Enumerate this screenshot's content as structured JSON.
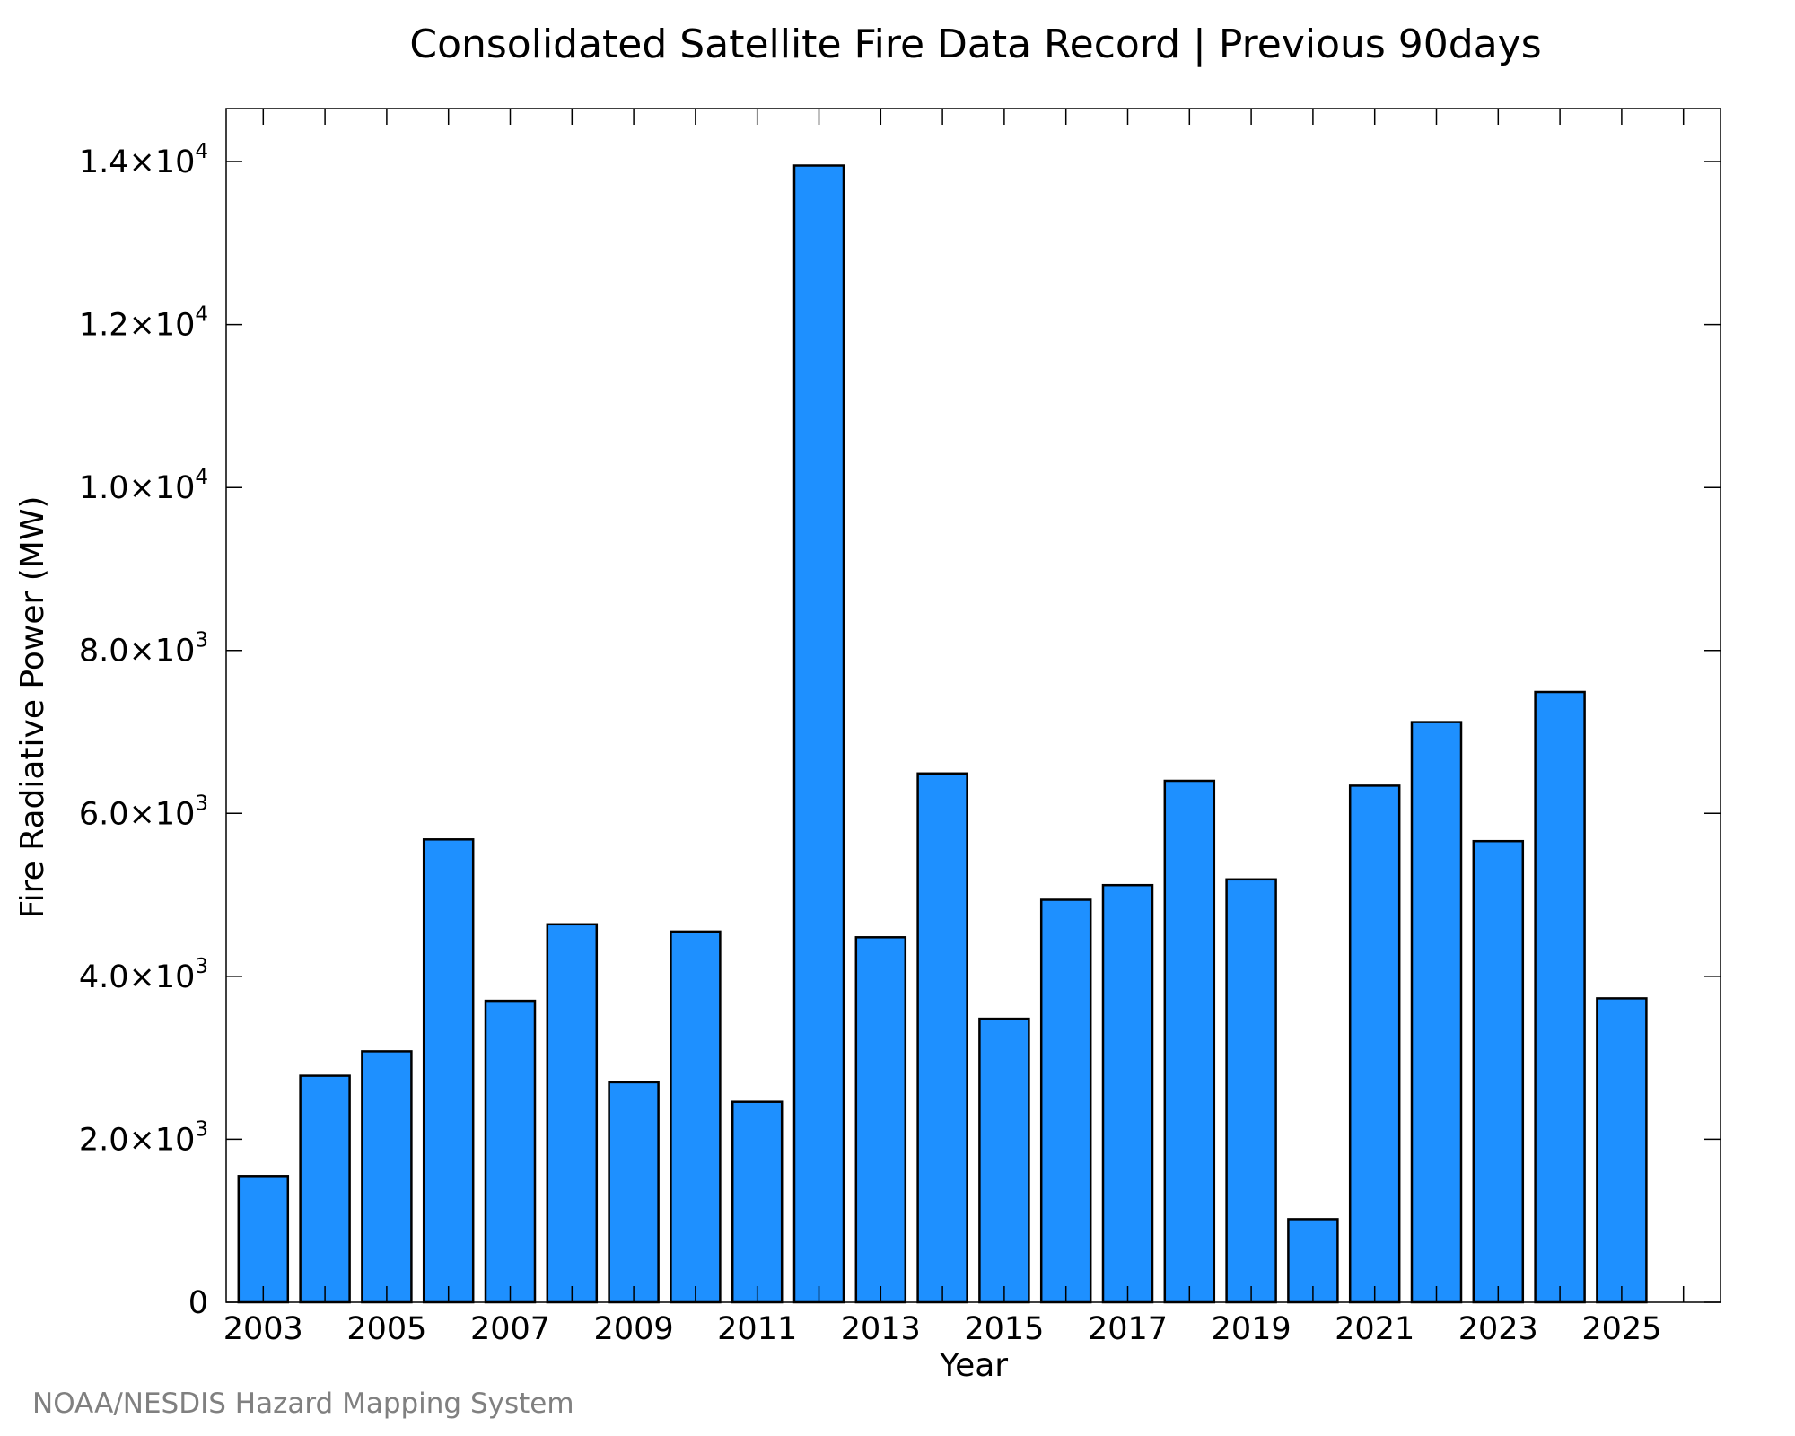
{
  "chart_data": {
    "type": "bar",
    "title": "Consolidated Satellite Fire Data Record | Previous 90days",
    "xlabel": "Year",
    "ylabel": "Fire Radiative Power (MW)",
    "categories": [
      "2003",
      "2004",
      "2005",
      "2006",
      "2007",
      "2008",
      "2009",
      "2010",
      "2011",
      "2012",
      "2013",
      "2014",
      "2015",
      "2016",
      "2017",
      "2018",
      "2019",
      "2020",
      "2021",
      "2022",
      "2023",
      "2024",
      "2025"
    ],
    "values": [
      1550,
      2780,
      3080,
      5680,
      3700,
      4640,
      2700,
      4550,
      2460,
      13950,
      4480,
      6490,
      3480,
      4940,
      5120,
      6400,
      5190,
      1020,
      6340,
      7120,
      5660,
      7490,
      3730
    ],
    "ylim": [
      0,
      14650
    ],
    "xlim": [
      2002.4,
      2026.6
    ],
    "bar_color": "#1e90ff",
    "bar_edge_color": "#000000",
    "y_ticks": [
      {
        "value": 0,
        "mantissa": "0",
        "exp": ""
      },
      {
        "value": 2000,
        "mantissa": "2.0×10",
        "exp": "3"
      },
      {
        "value": 4000,
        "mantissa": "4.0×10",
        "exp": "3"
      },
      {
        "value": 6000,
        "mantissa": "6.0×10",
        "exp": "3"
      },
      {
        "value": 8000,
        "mantissa": "8.0×10",
        "exp": "3"
      },
      {
        "value": 10000,
        "mantissa": "1.0×10",
        "exp": "4"
      },
      {
        "value": 12000,
        "mantissa": "1.2×10",
        "exp": "4"
      },
      {
        "value": 14000,
        "mantissa": "1.4×10",
        "exp": "4"
      }
    ],
    "x_tick_labels": [
      "2003",
      "2005",
      "2007",
      "2009",
      "2011",
      "2013",
      "2015",
      "2017",
      "2019",
      "2021",
      "2023",
      "2025"
    ],
    "grid": false,
    "legend": "none"
  },
  "credit": "NOAA/NESDIS Hazard Mapping System"
}
